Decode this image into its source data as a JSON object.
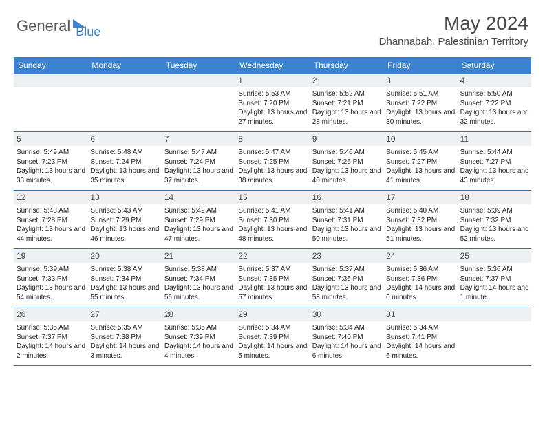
{
  "logo": {
    "part1": "General",
    "part2": "Blue"
  },
  "title": "May 2024",
  "location": "Dhannabah, Palestinian Territory",
  "dows": [
    "Sunday",
    "Monday",
    "Tuesday",
    "Wednesday",
    "Thursday",
    "Friday",
    "Saturday"
  ],
  "colors": {
    "header_bg": "#3b82d0",
    "header_text": "#ffffff",
    "daynum_bg": "#eef0f2",
    "rule": "#3b6fa8",
    "text": "#222222",
    "title": "#4a4a4a"
  },
  "weeks": [
    [
      {
        "n": "",
        "sr": "",
        "ss": "",
        "dl": ""
      },
      {
        "n": "",
        "sr": "",
        "ss": "",
        "dl": ""
      },
      {
        "n": "",
        "sr": "",
        "ss": "",
        "dl": ""
      },
      {
        "n": "1",
        "sr": "5:53 AM",
        "ss": "7:20 PM",
        "dl": "13 hours and 27 minutes."
      },
      {
        "n": "2",
        "sr": "5:52 AM",
        "ss": "7:21 PM",
        "dl": "13 hours and 28 minutes."
      },
      {
        "n": "3",
        "sr": "5:51 AM",
        "ss": "7:22 PM",
        "dl": "13 hours and 30 minutes."
      },
      {
        "n": "4",
        "sr": "5:50 AM",
        "ss": "7:22 PM",
        "dl": "13 hours and 32 minutes."
      }
    ],
    [
      {
        "n": "5",
        "sr": "5:49 AM",
        "ss": "7:23 PM",
        "dl": "13 hours and 33 minutes."
      },
      {
        "n": "6",
        "sr": "5:48 AM",
        "ss": "7:24 PM",
        "dl": "13 hours and 35 minutes."
      },
      {
        "n": "7",
        "sr": "5:47 AM",
        "ss": "7:24 PM",
        "dl": "13 hours and 37 minutes."
      },
      {
        "n": "8",
        "sr": "5:47 AM",
        "ss": "7:25 PM",
        "dl": "13 hours and 38 minutes."
      },
      {
        "n": "9",
        "sr": "5:46 AM",
        "ss": "7:26 PM",
        "dl": "13 hours and 40 minutes."
      },
      {
        "n": "10",
        "sr": "5:45 AM",
        "ss": "7:27 PM",
        "dl": "13 hours and 41 minutes."
      },
      {
        "n": "11",
        "sr": "5:44 AM",
        "ss": "7:27 PM",
        "dl": "13 hours and 43 minutes."
      }
    ],
    [
      {
        "n": "12",
        "sr": "5:43 AM",
        "ss": "7:28 PM",
        "dl": "13 hours and 44 minutes."
      },
      {
        "n": "13",
        "sr": "5:43 AM",
        "ss": "7:29 PM",
        "dl": "13 hours and 46 minutes."
      },
      {
        "n": "14",
        "sr": "5:42 AM",
        "ss": "7:29 PM",
        "dl": "13 hours and 47 minutes."
      },
      {
        "n": "15",
        "sr": "5:41 AM",
        "ss": "7:30 PM",
        "dl": "13 hours and 48 minutes."
      },
      {
        "n": "16",
        "sr": "5:41 AM",
        "ss": "7:31 PM",
        "dl": "13 hours and 50 minutes."
      },
      {
        "n": "17",
        "sr": "5:40 AM",
        "ss": "7:32 PM",
        "dl": "13 hours and 51 minutes."
      },
      {
        "n": "18",
        "sr": "5:39 AM",
        "ss": "7:32 PM",
        "dl": "13 hours and 52 minutes."
      }
    ],
    [
      {
        "n": "19",
        "sr": "5:39 AM",
        "ss": "7:33 PM",
        "dl": "13 hours and 54 minutes."
      },
      {
        "n": "20",
        "sr": "5:38 AM",
        "ss": "7:34 PM",
        "dl": "13 hours and 55 minutes."
      },
      {
        "n": "21",
        "sr": "5:38 AM",
        "ss": "7:34 PM",
        "dl": "13 hours and 56 minutes."
      },
      {
        "n": "22",
        "sr": "5:37 AM",
        "ss": "7:35 PM",
        "dl": "13 hours and 57 minutes."
      },
      {
        "n": "23",
        "sr": "5:37 AM",
        "ss": "7:36 PM",
        "dl": "13 hours and 58 minutes."
      },
      {
        "n": "24",
        "sr": "5:36 AM",
        "ss": "7:36 PM",
        "dl": "14 hours and 0 minutes."
      },
      {
        "n": "25",
        "sr": "5:36 AM",
        "ss": "7:37 PM",
        "dl": "14 hours and 1 minute."
      }
    ],
    [
      {
        "n": "26",
        "sr": "5:35 AM",
        "ss": "7:37 PM",
        "dl": "14 hours and 2 minutes."
      },
      {
        "n": "27",
        "sr": "5:35 AM",
        "ss": "7:38 PM",
        "dl": "14 hours and 3 minutes."
      },
      {
        "n": "28",
        "sr": "5:35 AM",
        "ss": "7:39 PM",
        "dl": "14 hours and 4 minutes."
      },
      {
        "n": "29",
        "sr": "5:34 AM",
        "ss": "7:39 PM",
        "dl": "14 hours and 5 minutes."
      },
      {
        "n": "30",
        "sr": "5:34 AM",
        "ss": "7:40 PM",
        "dl": "14 hours and 6 minutes."
      },
      {
        "n": "31",
        "sr": "5:34 AM",
        "ss": "7:41 PM",
        "dl": "14 hours and 6 minutes."
      },
      {
        "n": "",
        "sr": "",
        "ss": "",
        "dl": ""
      }
    ]
  ]
}
